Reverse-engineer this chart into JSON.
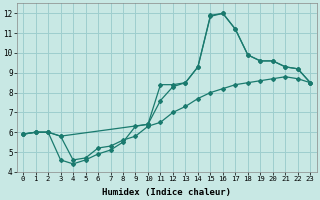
{
  "title": "",
  "xlabel": "Humidex (Indice chaleur)",
  "ylabel": "",
  "xlim": [
    -0.5,
    23.5
  ],
  "ylim": [
    4,
    12.5
  ],
  "yticks": [
    4,
    5,
    6,
    7,
    8,
    9,
    10,
    11,
    12
  ],
  "xticks": [
    0,
    1,
    2,
    3,
    4,
    5,
    6,
    7,
    8,
    9,
    10,
    11,
    12,
    13,
    14,
    15,
    16,
    17,
    18,
    19,
    20,
    21,
    22,
    23
  ],
  "background_color": "#c8e8e4",
  "grid_color": "#9ecece",
  "line_color": "#1a7a6e",
  "lines": [
    {
      "x": [
        0,
        1,
        2,
        3,
        4,
        5,
        6,
        7,
        8,
        9,
        10,
        11,
        12,
        13,
        14,
        15,
        16,
        17,
        18,
        19,
        20,
        21,
        22,
        23
      ],
      "y": [
        5.9,
        6.0,
        6.0,
        5.8,
        4.6,
        4.7,
        5.2,
        5.3,
        5.6,
        5.8,
        6.3,
        6.5,
        7.0,
        7.3,
        7.7,
        8.0,
        8.2,
        8.4,
        8.5,
        8.6,
        8.7,
        8.8,
        8.7,
        8.5
      ]
    },
    {
      "x": [
        0,
        1,
        2,
        3,
        10,
        11,
        12,
        13,
        14,
        15,
        16,
        17,
        18,
        19,
        20,
        21,
        22,
        23
      ],
      "y": [
        5.9,
        6.0,
        6.0,
        5.8,
        6.4,
        7.6,
        8.3,
        8.5,
        9.3,
        11.9,
        12.0,
        11.2,
        9.9,
        9.6,
        9.6,
        9.3,
        9.2,
        8.5
      ]
    },
    {
      "x": [
        0,
        1,
        2,
        3,
        4,
        5,
        6,
        7,
        8,
        9,
        10,
        11,
        12,
        13,
        14,
        15,
        16,
        17,
        18,
        19,
        20,
        21,
        22,
        23
      ],
      "y": [
        5.9,
        6.0,
        6.0,
        4.6,
        4.4,
        4.6,
        4.9,
        5.1,
        5.5,
        6.3,
        6.4,
        8.4,
        8.4,
        8.5,
        9.3,
        11.85,
        12.0,
        11.2,
        9.9,
        9.6,
        9.6,
        9.3,
        9.2,
        8.5
      ]
    }
  ]
}
